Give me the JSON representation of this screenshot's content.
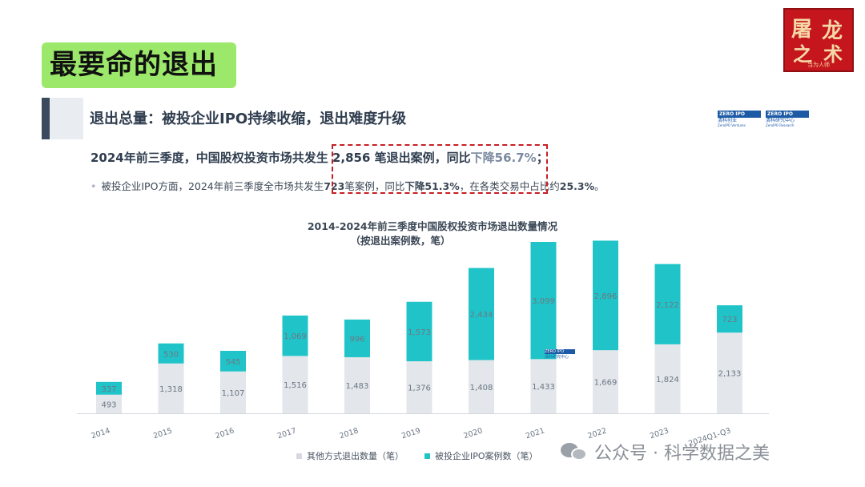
{
  "page": {
    "badge_title": "最要命的退出",
    "seal": {
      "c1": "屠",
      "c2": "龙",
      "c3": "之",
      "c4": "术",
      "caption": "当为人师"
    },
    "subtitle": "退出总量：被投企业IPO持续收缩，退出难度升级",
    "logo": {
      "left_tag": "ZERO IPO",
      "left_cn": "清科创业",
      "left_en": "ZeroIPO Ventures",
      "right_tag": "ZERO IPO",
      "right_cn": "清科研究中心",
      "right_en": "ZeroIPO Research"
    },
    "lead_text": "2024年前三季度，中国股权投资市场共发生 2,856 笔退出案例，同比",
    "lead_highlight": "下降56.7%",
    "lead_end": "；",
    "bullet_a": "被投企业IPO方面，2024年前三季度全市场共发生",
    "bullet_b": "723",
    "bullet_c": "笔案例，同比",
    "bullet_d": "下降51.3%",
    "bullet_e": "，在各类交易中占比约",
    "bullet_f": "25.3%",
    "bullet_g": "。",
    "watermark": "公众号 · 科学数据之美"
  },
  "chart_data": {
    "type": "bar",
    "stacked": true,
    "title": "2014-2024年前三季度中国股权投资市场退出数量情况",
    "subtitle": "（按退出案例数，笔）",
    "categories": [
      "2014",
      "2015",
      "2016",
      "2017",
      "2018",
      "2019",
      "2020",
      "2021",
      "2022",
      "2023",
      "2024Q1-Q3"
    ],
    "series": [
      {
        "name": "其他方式退出数量（笔）",
        "color": "#e3e6ea",
        "values": [
          493,
          1318,
          1107,
          1516,
          1483,
          1376,
          1408,
          1433,
          1669,
          1824,
          2133
        ]
      },
      {
        "name": "被投企业IPO案例数（笔）",
        "color": "#20c4c8",
        "values": [
          337,
          530,
          545,
          1069,
          996,
          1573,
          2434,
          3099,
          2896,
          2122,
          723
        ]
      }
    ],
    "ylim": [
      0,
      4532
    ],
    "legend_position": "bottom",
    "grid": false
  }
}
